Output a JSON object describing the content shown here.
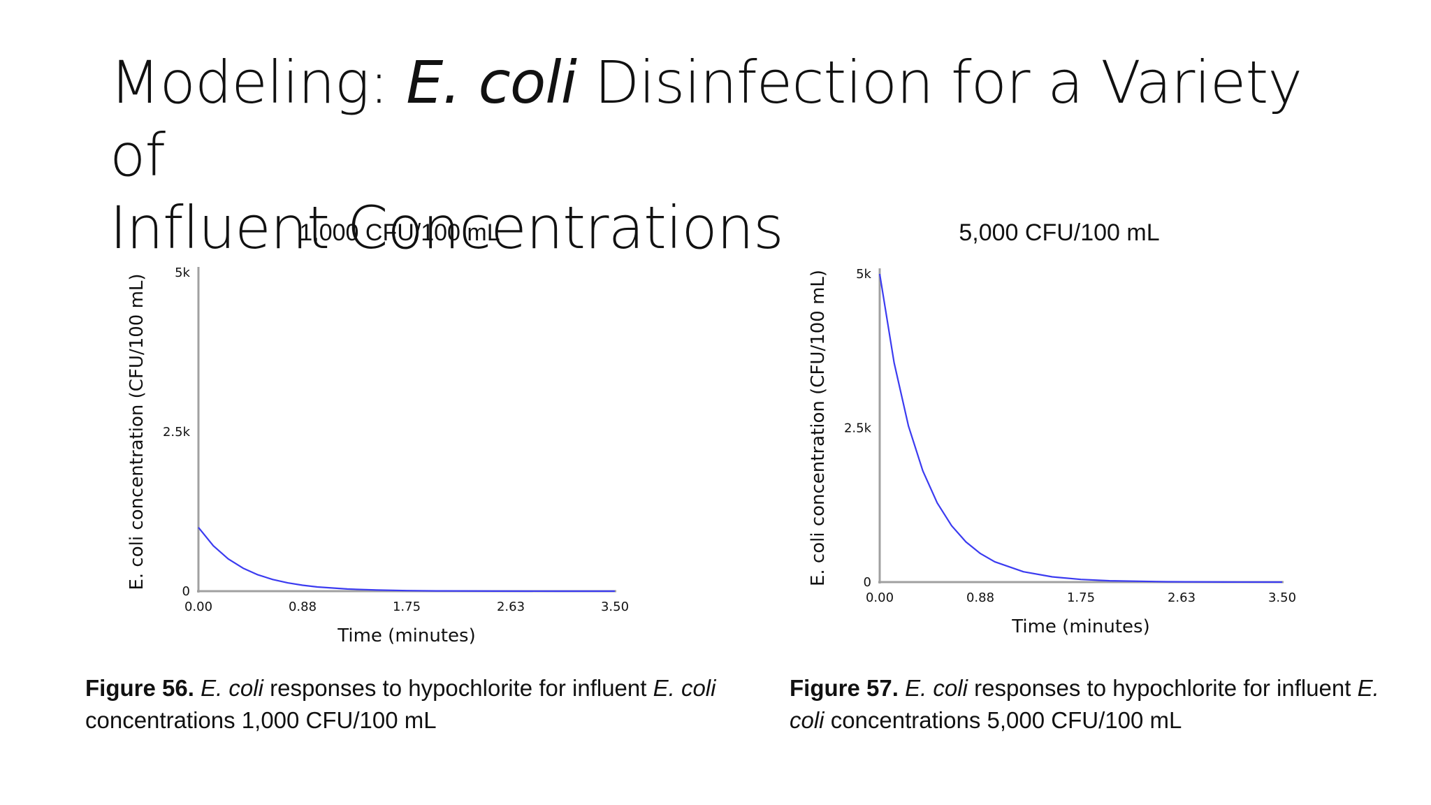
{
  "slide": {
    "title_prefix": "Modeling: ",
    "title_italic": "E. coli",
    "title_suffix": " Disinfection for a Variety of",
    "title_line2": "Influent Concentrations"
  },
  "panels": [
    {
      "heading": "1,000 CFU/100 mL",
      "caption": {
        "label": "Figure 56.",
        "italic1": "E. coli",
        "mid": " responses to hypochlorite for influent ",
        "italic2": "E. coli",
        "end": " concentrations 1,000 CFU/100 mL"
      }
    },
    {
      "heading": "5,000 CFU/100 mL",
      "caption": {
        "label": "Figure 57.",
        "italic1": "E. coli",
        "mid": " responses to hypochlorite for influent ",
        "italic2": "E. coli",
        "end": " concentrations 5,000 CFU/100 mL"
      }
    }
  ],
  "colors": {
    "line": "#3b3bf0",
    "axis": "#a0a0a0"
  },
  "chart_data": [
    {
      "type": "line",
      "xlabel": "Time (minutes)",
      "ylabel": "E. coli concentration (CFU/100 mL)",
      "xlim": [
        0,
        3.5
      ],
      "ylim": [
        0,
        5000
      ],
      "x_ticks": [
        "0.00",
        "0.88",
        "1.75",
        "2.63",
        "3.50"
      ],
      "y_ticks": [
        "0",
        "2.5k",
        "5k"
      ],
      "series": [
        {
          "x": [
            0,
            0.125,
            0.25,
            0.375,
            0.5,
            0.625,
            0.75,
            0.875,
            1.0,
            1.25,
            1.5,
            1.75,
            2.0,
            2.5,
            3.0,
            3.5
          ],
          "values": [
            1000,
            712,
            507,
            361,
            257,
            183,
            130,
            93,
            66,
            34,
            17,
            9,
            4,
            1,
            0,
            0
          ]
        }
      ]
    },
    {
      "type": "line",
      "xlabel": "Time (minutes)",
      "ylabel": "E. coli concentration (CFU/100 mL)",
      "xlim": [
        0,
        3.5
      ],
      "ylim": [
        0,
        5000
      ],
      "x_ticks": [
        "0.00",
        "0.88",
        "1.75",
        "2.63",
        "3.50"
      ],
      "y_ticks": [
        "0",
        "2.5k",
        "5k"
      ],
      "series": [
        {
          "x": [
            0,
            0.125,
            0.25,
            0.375,
            0.5,
            0.625,
            0.75,
            0.875,
            1.0,
            1.25,
            1.5,
            1.75,
            2.0,
            2.5,
            3.0,
            3.5
          ],
          "values": [
            5000,
            3560,
            2535,
            1805,
            1285,
            915,
            652,
            464,
            330,
            168,
            85,
            43,
            22,
            6,
            1,
            0
          ]
        }
      ]
    }
  ]
}
